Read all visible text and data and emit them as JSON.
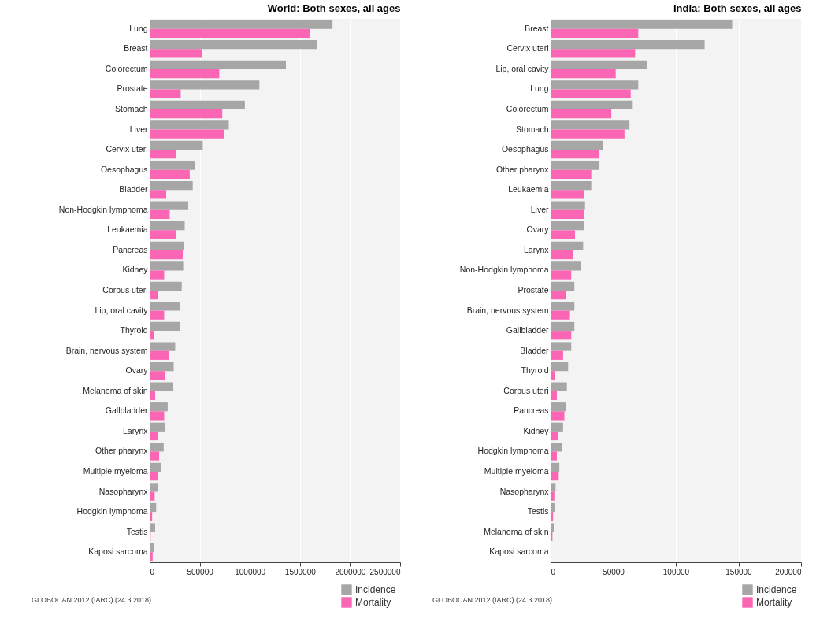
{
  "chart_data": [
    {
      "type": "bar",
      "orientation": "horizontal",
      "title": "World: Both sexes, all ages",
      "categories": [
        "Lung",
        "Breast",
        "Colorectum",
        "Prostate",
        "Stomach",
        "Liver",
        "Cervix uteri",
        "Oesophagus",
        "Bladder",
        "Non-Hodgkin lymphoma",
        "Leukaemia",
        "Pancreas",
        "Kidney",
        "Corpus uteri",
        "Lip, oral cavity",
        "Thyroid",
        "Brain, nervous system",
        "Ovary",
        "Melanoma of skin",
        "Gallbladder",
        "Larynx",
        "Other pharynx",
        "Multiple myeloma",
        "Nasopharynx",
        "Hodgkin lymphoma",
        "Testis",
        "Kaposi sarcoma"
      ],
      "series": [
        {
          "name": "Incidence",
          "color": "#a6a6a6",
          "values": [
            1825000,
            1670000,
            1360000,
            1095000,
            950000,
            790000,
            530000,
            455000,
            430000,
            385000,
            350000,
            340000,
            335000,
            320000,
            300000,
            300000,
            255000,
            240000,
            230000,
            180000,
            155000,
            140000,
            115000,
            85000,
            65000,
            55000,
            45000
          ]
        },
        {
          "name": "Mortality",
          "color": "#fb66b4",
          "values": [
            1600000,
            525000,
            695000,
            310000,
            725000,
            745000,
            265000,
            400000,
            165000,
            200000,
            265000,
            330000,
            145000,
            85000,
            145000,
            40000,
            190000,
            150000,
            55000,
            145000,
            85000,
            95000,
            80000,
            50000,
            25000,
            10000,
            30000
          ]
        }
      ],
      "xlim": [
        0,
        2500000
      ],
      "xticks": [
        0,
        500000,
        1000000,
        1500000,
        2000000,
        2500000
      ],
      "grid": "x",
      "legend": "bottom right",
      "annotations": [
        "GLOBOCAN 2012 (IARC) (24.3.2018)"
      ]
    },
    {
      "type": "bar",
      "orientation": "horizontal",
      "title": "India: Both sexes, all ages",
      "categories": [
        "Breast",
        "Cervix uteri",
        "Lip, oral cavity",
        "Lung",
        "Colorectum",
        "Stomach",
        "Oesophagus",
        "Other pharynx",
        "Leukaemia",
        "Liver",
        "Ovary",
        "Larynx",
        "Non-Hodgkin lymphoma",
        "Prostate",
        "Brain, nervous system",
        "Gallbladder",
        "Bladder",
        "Thyroid",
        "Corpus uteri",
        "Pancreas",
        "Kidney",
        "Hodgkin lymphoma",
        "Multiple myeloma",
        "Nasopharynx",
        "Testis",
        "Melanoma of skin",
        "Kaposi sarcoma"
      ],
      "series": [
        {
          "name": "Incidence",
          "color": "#a6a6a6",
          "values": [
            145000,
            123000,
            77000,
            70000,
            65000,
            63000,
            42000,
            39000,
            32500,
            27500,
            27000,
            26000,
            24000,
            19000,
            19000,
            19000,
            16500,
            14000,
            13000,
            12000,
            10000,
            9000,
            7000,
            4000,
            3500,
            2500,
            0
          ]
        },
        {
          "name": "Mortality",
          "color": "#fb66b4",
          "values": [
            70000,
            67500,
            52000,
            64000,
            48500,
            59000,
            39000,
            32500,
            27000,
            27000,
            19500,
            18000,
            16500,
            12000,
            15500,
            16500,
            10000,
            3500,
            5000,
            11000,
            6000,
            5000,
            6500,
            3000,
            2000,
            1500,
            0
          ]
        }
      ],
      "xlim": [
        0,
        200000
      ],
      "xticks": [
        0,
        50000,
        100000,
        150000,
        200000
      ],
      "grid": "x",
      "legend": "bottom right",
      "annotations": [
        "GLOBOCAN 2012 (IARC) (24.3.2018)"
      ]
    }
  ]
}
